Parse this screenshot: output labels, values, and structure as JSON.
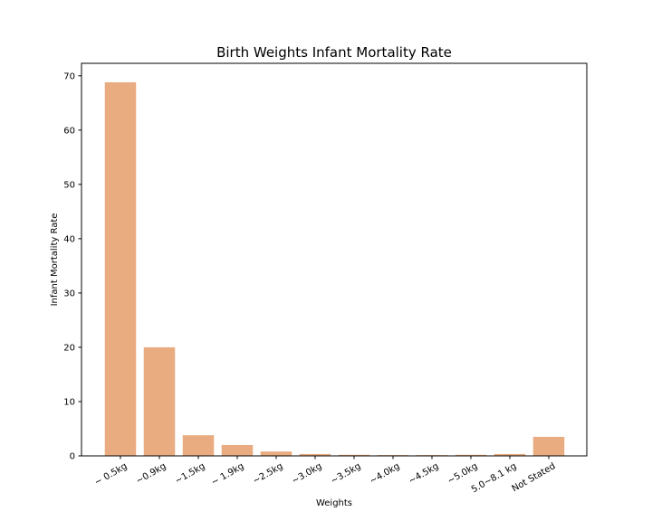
{
  "chart_data": {
    "type": "bar",
    "title": "Birth Weights Infant Mortality Rate",
    "xlabel": "Weights",
    "ylabel": "Infant Mortality Rate",
    "categories": [
      "~ 0.5kg",
      "~0.9kg",
      "~1.5kg",
      "~ 1.9kg",
      "~2.5kg",
      "~3.0kg",
      "~3.5kg",
      "~4.0kg",
      "~4.5kg",
      "~5.0kg",
      "5.0~8.1 kg",
      "Not Stated"
    ],
    "values": [
      68.8,
      20.0,
      3.8,
      2.0,
      0.8,
      0.35,
      0.2,
      0.15,
      0.15,
      0.2,
      0.35,
      3.5
    ],
    "ylim": [
      0,
      72.3
    ],
    "yticks": [
      0,
      10,
      20,
      30,
      40,
      50,
      60,
      70
    ],
    "bar_color": "#e9ab80",
    "grid": false,
    "legend": "none"
  }
}
